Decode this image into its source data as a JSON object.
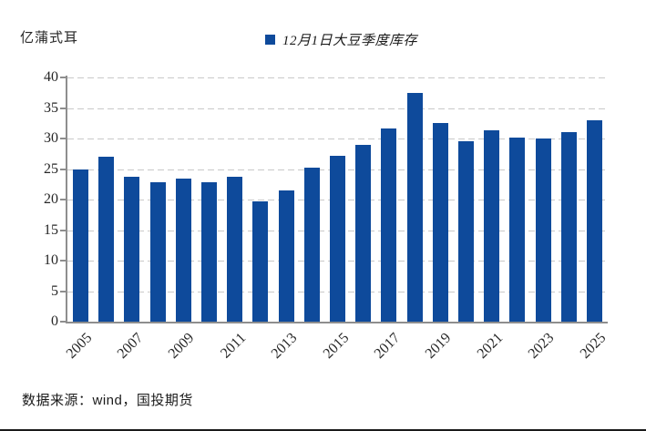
{
  "unit_label": "亿蒲式耳",
  "legend": {
    "label": "12月1日大豆季度库存",
    "marker": "square",
    "marker_color": "#0E4A9B"
  },
  "source_note": "数据来源：wind，国投期货",
  "colors": {
    "background": "#FFFFFF",
    "bar": "#0E4A9B",
    "axis": "#8E8E8E",
    "grid": "#C9C9C9",
    "tick_label": "#262626",
    "legend_text": "#1A1A1A",
    "source_text": "#1A1A1A",
    "bottom_rule": "#1A1A1A"
  },
  "chart_data": {
    "type": "bar",
    "title": "12月1日大豆季度库存",
    "xlabel": "",
    "ylabel": "亿蒲式耳",
    "categories": [
      "2005",
      "2006",
      "2007",
      "2008",
      "2009",
      "2010",
      "2011",
      "2012",
      "2013",
      "2014",
      "2015",
      "2016",
      "2017",
      "2018",
      "2019",
      "2020",
      "2021",
      "2022",
      "2023",
      "2024",
      "2025"
    ],
    "values": [
      25.0,
      27.0,
      23.7,
      22.8,
      23.4,
      22.8,
      23.7,
      19.7,
      21.5,
      25.3,
      27.2,
      29.0,
      31.6,
      37.4,
      32.5,
      29.5,
      31.3,
      30.2,
      30.0,
      31.0,
      33.0
    ],
    "ylim": [
      0,
      40
    ],
    "ytick_step": 5,
    "yticks": [
      0,
      5,
      10,
      15,
      20,
      25,
      30,
      35,
      40
    ],
    "xtick_labels_shown": [
      "2005",
      "2007",
      "2009",
      "2011",
      "2013",
      "2015",
      "2017",
      "2019",
      "2021",
      "2023",
      "2025"
    ],
    "grid": "horizontal-dashed",
    "legend_position": "top-center",
    "bar_color": "#0E4A9B"
  }
}
